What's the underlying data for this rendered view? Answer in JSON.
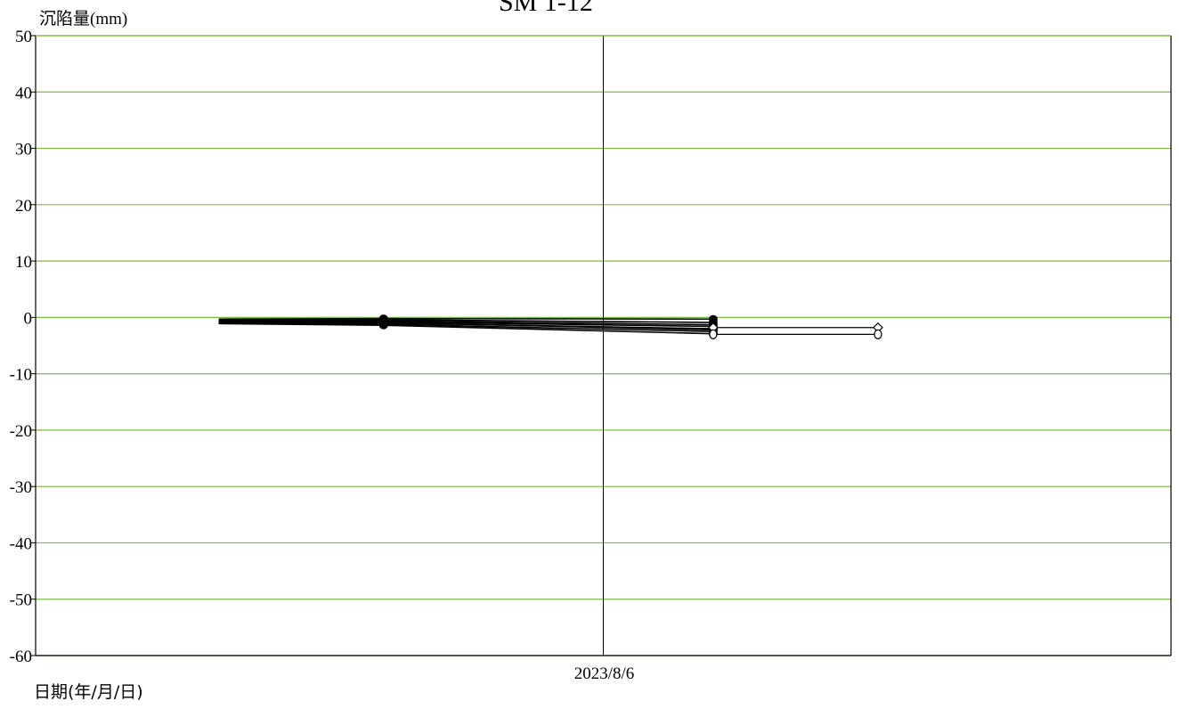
{
  "chart_data": {
    "type": "line",
    "title": "SM 1-12",
    "ylabel": "沉陷量(mm)",
    "xlabel": "日期(年/月/日)",
    "ylim": [
      -60,
      50
    ],
    "yticks": [
      50,
      40,
      30,
      20,
      10,
      0,
      -10,
      -20,
      -30,
      -40,
      -50,
      -60
    ],
    "xlim": [
      "2023/7/6",
      "2023/9/6"
    ],
    "xticks": [
      "2023/8/6"
    ],
    "grid": true,
    "colors": {
      "grid": "#7dbb42",
      "axis": "#000000",
      "series": "#000000"
    },
    "x": [
      "2023/7/16",
      "2023/7/25",
      "2023/8/6",
      "2023/8/12"
    ],
    "series": [
      {
        "values": [
          -0.3,
          -0.2,
          null,
          -0.3
        ]
      },
      {
        "values": [
          -0.5,
          -0.4,
          null,
          -0.9
        ]
      },
      {
        "values": [
          -0.6,
          -0.6,
          null,
          -1.3
        ]
      },
      {
        "values": [
          -0.7,
          -0.8,
          null,
          -1.6
        ]
      },
      {
        "values": [
          -0.8,
          -1.0,
          null,
          -2.0
        ]
      },
      {
        "values": [
          -1.0,
          -1.2,
          null,
          -2.5
        ]
      },
      {
        "values": [
          -1.1,
          -1.4,
          null,
          -2.9
        ]
      },
      {
        "values": [
          -1.0,
          -0.9,
          null,
          -2.2
        ]
      }
    ],
    "extra_series": [
      {
        "x": [
          "2023/8/12",
          "2023/8/21"
        ],
        "values": [
          -1.8,
          -1.8
        ],
        "marker": "open-diamond"
      },
      {
        "x": [
          "2023/8/12",
          "2023/8/21"
        ],
        "values": [
          -3.0,
          -3.0
        ],
        "marker": "open-circle"
      }
    ]
  }
}
